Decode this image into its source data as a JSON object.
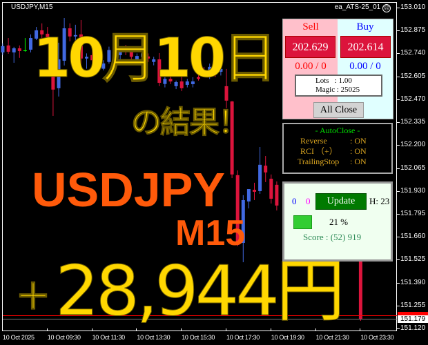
{
  "chart": {
    "symbol": "USDJPY,M15",
    "ea_name": "ea_ATS-25_01",
    "ea_status_icon": "sad-face-icon",
    "price_axis": [
      "153.010",
      "152.875",
      "152.740",
      "152.605",
      "152.470",
      "152.335",
      "152.200",
      "152.065",
      "151.930",
      "151.795",
      "151.660",
      "151.525",
      "151.390",
      "151.255",
      "151.120"
    ],
    "price_max": 153.01,
    "price_min": 151.12,
    "time_axis": [
      "10 Oct 2025",
      "10 Oct 09:30",
      "10 Oct 11:30",
      "10 Oct 13:30",
      "10 Oct 15:30",
      "10 Oct 17:30",
      "10 Oct 19:30",
      "10 Oct 21:30",
      "10 Oct 23:30"
    ],
    "bid_price": "151.179",
    "ask_line_color": "#ff0000",
    "bid_line_color": "#808080",
    "colors": {
      "bull": "#4169e1",
      "bear": "#dc143c",
      "doji": "#00ff00"
    },
    "candles": [
      [
        0,
        152.746,
        152.799,
        152.73,
        152.783
      ],
      [
        1,
        152.787,
        152.831,
        152.738,
        152.75
      ],
      [
        2,
        152.746,
        152.779,
        152.685,
        152.77
      ],
      [
        3,
        152.77,
        152.787,
        152.714,
        152.754
      ],
      [
        4,
        152.758,
        152.831,
        152.75,
        152.758
      ],
      [
        5,
        152.762,
        152.852,
        152.746,
        152.831
      ],
      [
        6,
        152.827,
        152.896,
        152.819,
        152.876
      ],
      [
        7,
        152.876,
        152.917,
        152.831,
        152.852
      ],
      [
        8,
        152.856,
        152.896,
        152.811,
        152.827
      ],
      [
        9,
        152.705,
        152.811,
        152.372,
        152.527
      ],
      [
        10,
        152.535,
        152.803,
        152.486,
        152.705
      ],
      [
        11,
        152.697,
        152.949,
        152.669,
        152.888
      ],
      [
        12,
        152.888,
        152.917,
        152.811,
        152.84
      ],
      [
        13,
        152.84,
        152.909,
        152.811,
        152.848
      ],
      [
        14,
        152.852,
        152.937,
        152.669,
        152.71
      ],
      [
        15,
        152.71,
        152.74,
        152.65,
        152.72
      ],
      [
        16,
        152.73,
        152.76,
        152.68,
        152.7
      ],
      [
        17,
        152.738,
        152.75,
        152.66,
        152.685
      ],
      [
        18,
        152.65,
        152.7,
        152.64,
        152.681
      ],
      [
        19,
        152.69,
        152.78,
        152.68,
        152.76
      ],
      [
        20,
        152.77,
        152.8,
        152.72,
        152.74
      ],
      [
        21,
        152.73,
        152.77,
        152.7,
        152.75
      ],
      [
        22,
        152.77,
        152.79,
        152.73,
        152.75
      ],
      [
        23,
        152.75,
        152.77,
        152.7,
        152.72
      ],
      [
        24,
        152.7,
        152.74,
        152.68,
        152.725
      ],
      [
        25,
        152.72,
        152.76,
        152.7,
        152.74
      ],
      [
        26,
        152.722,
        152.74,
        152.69,
        152.71
      ],
      [
        27,
        152.69,
        152.72,
        152.67,
        152.705
      ],
      [
        28,
        152.705,
        152.742,
        152.547,
        152.567
      ],
      [
        29,
        152.56,
        152.6,
        152.54,
        152.59
      ],
      [
        30,
        152.59,
        152.61,
        152.56,
        152.575
      ],
      [
        31,
        152.547,
        152.58,
        152.53,
        152.571
      ],
      [
        32,
        152.575,
        152.616,
        152.518,
        152.535
      ],
      [
        33,
        152.555,
        152.59,
        152.54,
        152.575
      ],
      [
        34,
        152.559,
        152.6,
        152.54,
        152.575
      ],
      [
        35,
        152.6,
        152.63,
        152.58,
        152.59
      ],
      [
        36,
        152.644,
        152.66,
        152.61,
        152.624
      ],
      [
        37,
        152.604,
        152.68,
        152.59,
        152.661
      ],
      [
        38,
        152.697,
        152.72,
        152.6,
        152.616
      ],
      [
        39,
        152.632,
        152.66,
        152.61,
        152.649
      ],
      [
        40,
        152.547,
        152.649,
        152.417,
        152.462
      ],
      [
        41,
        152.457,
        152.46,
        152.006,
        152.027
      ],
      [
        42,
        152.023,
        152.051,
        151.604,
        151.612
      ],
      [
        43,
        151.624,
        151.905,
        151.51,
        151.876
      ],
      [
        44,
        151.868,
        151.941,
        151.827,
        151.941
      ],
      [
        45,
        151.937,
        151.978,
        151.876,
        151.925
      ],
      [
        46,
        151.929,
        152.189,
        151.913,
        152.084
      ],
      [
        47,
        152.079,
        152.136,
        151.982,
        152.039
      ],
      [
        48,
        152.002,
        152.027,
        151.856,
        151.884
      ],
      [
        49,
        151.966,
        151.986,
        151.815,
        151.844
      ],
      [
        64,
        151.518,
        151.518,
        151.165,
        151.173
      ]
    ]
  },
  "overlay": {
    "date_text": "10月10日",
    "result_text": "の結果！",
    "pair_text": "USDJPY",
    "timeframe_text": "M15",
    "profit_sign": "＋",
    "profit_text": "28,944円"
  },
  "trade_panel": {
    "sell_label": "Sell",
    "buy_label": "Buy",
    "sell_price": "202.629",
    "buy_price": "202.614",
    "sell_position": "0.00 / 0",
    "buy_position": "0.00 / 0",
    "lots": "Lots   : 1.00",
    "magic": "Magic : 25025",
    "all_close_label": "All Close"
  },
  "auto_close": {
    "title": "- AutoClose -",
    "rows": [
      {
        "key": "Reverse",
        "value": ": ON"
      },
      {
        "key": "RCI （+）",
        "value": ": ON"
      },
      {
        "key": "TrailingStop",
        "value": ": ON"
      }
    ]
  },
  "score_panel": {
    "count_blue": "0",
    "count_magenta": "0",
    "update_label": "Update",
    "hour": "H: 23",
    "progress_percent": 21,
    "progress_text": "21 %",
    "score": "Score : (52) 919"
  }
}
